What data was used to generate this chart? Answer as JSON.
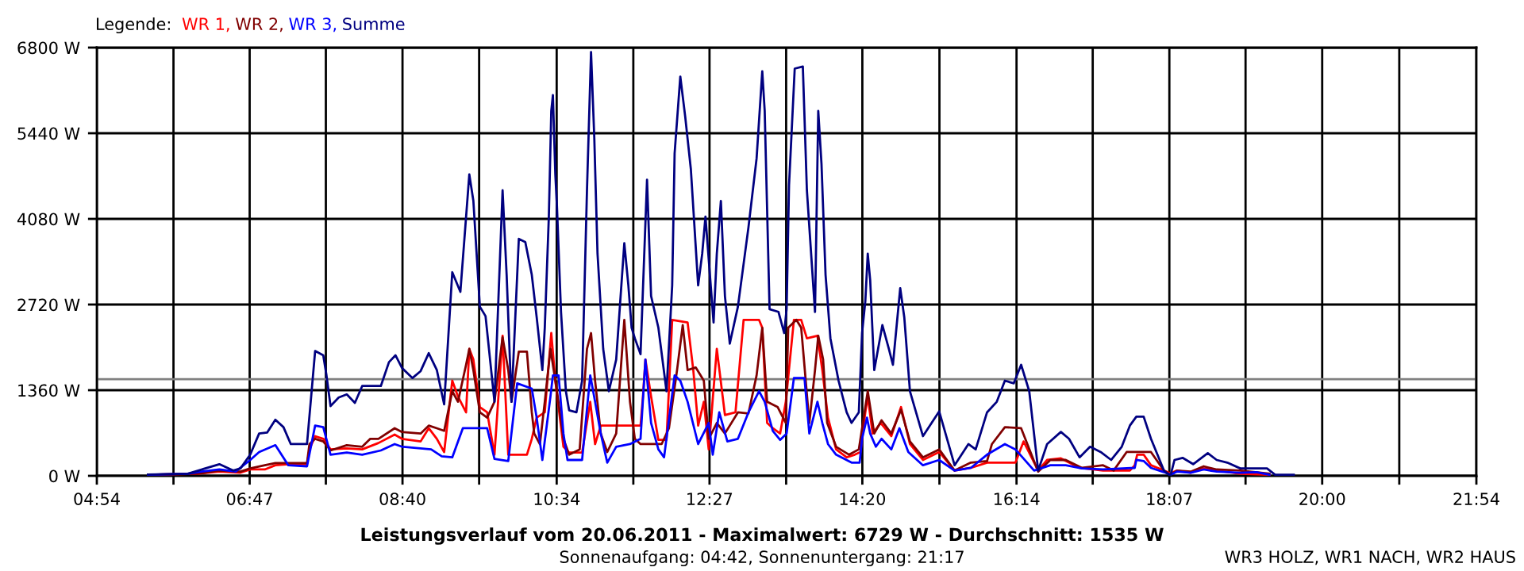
{
  "chart_data": {
    "type": "line",
    "title": "Leistungsverlauf vom 20.06.2011 - Maximalwert: 6729 W - Durchschnitt: 1535 W",
    "subtitle": "Sonnenaufgang: 04:42, Sonnenuntergang: 21:17",
    "legend_title": "Legende:",
    "legend": "top left",
    "grid": true,
    "line_style": "solid",
    "marker": "none",
    "annotations": [
      "WR3 HOLZ, WR1 NACH, WR2 HAUS"
    ],
    "xlim": [
      4.9,
      21.9
    ],
    "xticks": [
      {
        "value": 4.9,
        "label": "04:54"
      },
      {
        "value": 5.8444,
        "label": null
      },
      {
        "value": 6.7833,
        "label": "06:47"
      },
      {
        "value": 7.7222,
        "label": null
      },
      {
        "value": 8.6667,
        "label": "08:40"
      },
      {
        "value": 9.6111,
        "label": null
      },
      {
        "value": 10.5667,
        "label": "10:34"
      },
      {
        "value": 11.5111,
        "label": null
      },
      {
        "value": 12.45,
        "label": "12:27"
      },
      {
        "value": 13.3944,
        "label": null
      },
      {
        "value": 14.3333,
        "label": "14:20"
      },
      {
        "value": 15.2833,
        "label": null
      },
      {
        "value": 16.2333,
        "label": "16:14"
      },
      {
        "value": 17.1722,
        "label": null
      },
      {
        "value": 18.1167,
        "label": "18:07"
      },
      {
        "value": 19.0556,
        "label": null
      },
      {
        "value": 20.0,
        "label": "20:00"
      },
      {
        "value": 20.95,
        "label": null
      },
      {
        "value": 21.9,
        "label": "21:54"
      }
    ],
    "ylim": [
      0,
      6800
    ],
    "yticks": [
      {
        "value": 0,
        "label": "0 W"
      },
      {
        "value": 1360,
        "label": "1360 W"
      },
      {
        "value": 2720,
        "label": "2720 W"
      },
      {
        "value": 4080,
        "label": "4080 W"
      },
      {
        "value": 5440,
        "label": "5440 W"
      },
      {
        "value": 6800,
        "label": "6800 W"
      }
    ],
    "ref_lines": [
      {
        "axis": "y",
        "value": 1535,
        "label": null,
        "color": "#808080"
      }
    ],
    "series": [
      {
        "name": "WR 1,",
        "color": "#ff0000",
        "x": [
          5.53,
          6.14,
          6.41,
          6.67,
          6.79,
          6.97,
          7.1,
          7.26,
          7.49,
          7.52,
          7.59,
          7.69,
          7.78,
          7.98,
          8.17,
          8.37,
          8.57,
          8.66,
          8.89,
          8.99,
          9.09,
          9.18,
          9.28,
          9.35,
          9.45,
          9.49,
          9.54,
          9.62,
          9.71,
          9.8,
          9.9,
          9.97,
          10.2,
          10.26,
          10.32,
          10.42,
          10.5,
          10.55,
          10.65,
          10.72,
          10.88,
          10.98,
          11.04,
          11.11,
          11.6,
          11.63,
          11.66,
          11.73,
          11.82,
          11.92,
          11.99,
          12.18,
          12.25,
          12.31,
          12.38,
          12.44,
          12.54,
          12.64,
          12.77,
          12.87,
          13.06,
          13.1,
          13.16,
          13.23,
          13.32,
          13.39,
          13.49,
          13.58,
          13.65,
          13.78,
          13.84,
          13.91,
          14.01,
          14.14,
          14.24,
          14.31,
          14.37,
          14.4,
          14.46,
          14.56,
          14.69,
          14.81,
          14.92,
          15.08,
          15.28,
          15.47,
          15.67,
          15.87,
          16.22,
          16.32,
          16.5,
          16.61,
          16.78,
          17.01,
          17.3,
          17.56,
          17.63,
          17.69,
          17.72,
          17.8,
          17.89,
          18.05,
          18.13,
          18.21,
          18.38,
          18.54,
          18.7,
          18.99,
          19.35
        ],
        "values": [
          17,
          34,
          67,
          50,
          101,
          101,
          168,
          185,
          185,
          420,
          630,
          588,
          420,
          437,
          420,
          521,
          655,
          588,
          546,
          756,
          588,
          378,
          1511,
          1260,
          1008,
          2015,
          1847,
          1092,
          1008,
          336,
          2225,
          336,
          336,
          588,
          924,
          1008,
          2267,
          1511,
          462,
          369,
          369,
          1176,
          504,
          798,
          798,
          1260,
          1847,
          1260,
          571,
          571,
          2477,
          2435,
          1679,
          798,
          1176,
          420,
          2015,
          966,
          1008,
          2477,
          2477,
          2351,
          840,
          756,
          672,
          1176,
          2477,
          2477,
          2183,
          2225,
          1679,
          924,
          420,
          294,
          336,
          378,
          1008,
          1260,
          672,
          840,
          630,
          1092,
          504,
          252,
          378,
          84,
          126,
          210,
          210,
          546,
          84,
          252,
          277,
          126,
          84,
          84,
          84,
          168,
          336,
          336,
          168,
          84,
          42,
          84,
          50,
          118,
          84,
          34,
          17
        ]
      },
      {
        "name": "WR 2,",
        "color": "#800000",
        "x": [
          5.53,
          6.14,
          6.41,
          6.67,
          6.79,
          6.97,
          7.1,
          7.26,
          7.49,
          7.52,
          7.59,
          7.69,
          7.78,
          7.98,
          8.17,
          8.27,
          8.37,
          8.57,
          8.66,
          8.89,
          8.99,
          9.09,
          9.18,
          9.28,
          9.35,
          9.45,
          9.49,
          9.54,
          9.62,
          9.71,
          9.8,
          9.9,
          9.97,
          10.01,
          10.1,
          10.2,
          10.26,
          10.29,
          10.36,
          10.42,
          10.49,
          10.57,
          10.65,
          10.72,
          10.85,
          10.94,
          10.99,
          11.04,
          11.11,
          11.19,
          11.3,
          11.4,
          11.47,
          11.53,
          11.6,
          11.86,
          11.95,
          12.05,
          12.12,
          12.18,
          12.28,
          12.38,
          12.44,
          12.54,
          12.64,
          12.8,
          12.93,
          13.03,
          13.1,
          13.16,
          13.29,
          13.39,
          13.42,
          13.52,
          13.58,
          13.68,
          13.75,
          13.79,
          13.85,
          13.9,
          14.01,
          14.17,
          14.29,
          14.35,
          14.4,
          14.48,
          14.57,
          14.69,
          14.81,
          14.92,
          15.08,
          15.28,
          15.47,
          15.67,
          15.87,
          15.93,
          16.09,
          16.29,
          16.5,
          16.65,
          16.84,
          17.04,
          17.3,
          17.43,
          17.59,
          17.71,
          17.89,
          18.05,
          18.13,
          18.21,
          18.38,
          18.54,
          18.7,
          18.99,
          19.35
        ],
        "values": [
          17,
          34,
          84,
          67,
          118,
          168,
          202,
          202,
          202,
          504,
          588,
          546,
          403,
          487,
          462,
          588,
          588,
          756,
          697,
          672,
          798,
          756,
          714,
          1344,
          1176,
          1763,
          2015,
          1679,
          1008,
          924,
          1176,
          2200,
          1679,
          1176,
          1973,
          1973,
          1008,
          672,
          504,
          1176,
          2015,
          1344,
          588,
          336,
          420,
          2015,
          2267,
          1511,
          672,
          378,
          672,
          2477,
          1176,
          588,
          504,
          504,
          756,
          1679,
          2393,
          1679,
          1721,
          1511,
          588,
          840,
          672,
          1008,
          991,
          1595,
          2351,
          1176,
          1092,
          840,
          2351,
          2477,
          2351,
          840,
          1679,
          2225,
          1847,
          840,
          462,
          336,
          420,
          924,
          1344,
          672,
          882,
          672,
          1050,
          546,
          294,
          420,
          84,
          210,
          235,
          504,
          773,
          756,
          67,
          252,
          252,
          126,
          168,
          84,
          378,
          378,
          378,
          84,
          17,
          84,
          67,
          151,
          101,
          84,
          34
        ]
      },
      {
        "name": "WR 3,",
        "color": "#0000ff",
        "x": [
          5.53,
          6.02,
          6.14,
          6.41,
          6.61,
          6.79,
          6.9,
          7.1,
          7.26,
          7.49,
          7.59,
          7.69,
          7.78,
          7.98,
          8.17,
          8.4,
          8.57,
          8.66,
          9.02,
          9.15,
          9.28,
          9.41,
          9.71,
          9.8,
          9.97,
          10.08,
          10.26,
          10.32,
          10.39,
          10.49,
          10.52,
          10.59,
          10.65,
          10.7,
          10.88,
          10.98,
          11.04,
          11.11,
          11.19,
          11.3,
          11.47,
          11.6,
          11.66,
          11.73,
          11.82,
          11.89,
          12.02,
          12.09,
          12.18,
          12.31,
          12.44,
          12.49,
          12.57,
          12.67,
          12.8,
          12.93,
          13.06,
          13.13,
          13.23,
          13.32,
          13.4,
          13.49,
          13.62,
          13.68,
          13.78,
          13.84,
          13.91,
          14.01,
          14.2,
          14.3,
          14.33,
          14.39,
          14.43,
          14.5,
          14.57,
          14.69,
          14.79,
          14.9,
          15.08,
          15.28,
          15.47,
          15.67,
          15.87,
          16.09,
          16.22,
          16.45,
          16.65,
          16.84,
          17.04,
          17.3,
          17.69,
          17.71,
          17.8,
          17.89,
          18.05,
          18.13,
          18.21,
          18.38,
          18.54,
          18.7,
          18.99,
          19.19,
          19.35
        ],
        "values": [
          17,
          34,
          59,
          101,
          67,
          252,
          378,
          487,
          168,
          151,
          798,
          773,
          336,
          369,
          336,
          403,
          504,
          462,
          420,
          311,
          294,
          756,
          756,
          269,
          235,
          1469,
          1385,
          924,
          252,
          1260,
          1595,
          1595,
          672,
          252,
          252,
          1595,
          1176,
          672,
          210,
          462,
          504,
          588,
          1847,
          840,
          420,
          294,
          1595,
          1511,
          1176,
          504,
          840,
          336,
          1008,
          546,
          588,
          1008,
          1344,
          1176,
          714,
          571,
          672,
          1553,
          1553,
          672,
          1176,
          840,
          504,
          336,
          210,
          210,
          588,
          924,
          672,
          462,
          588,
          420,
          756,
          378,
          168,
          252,
          84,
          126,
          336,
          504,
          420,
          84,
          168,
          168,
          118,
          101,
          126,
          252,
          235,
          126,
          59,
          17,
          67,
          50,
          101,
          67,
          50,
          59,
          17
        ]
      },
      {
        "name": "Summe",
        "color": "#000080",
        "x": [
          5.53,
          6.02,
          6.15,
          6.41,
          6.58,
          6.67,
          6.79,
          6.9,
          7.0,
          7.1,
          7.2,
          7.29,
          7.49,
          7.59,
          7.69,
          7.73,
          7.78,
          7.88,
          7.98,
          8.08,
          8.17,
          8.4,
          8.5,
          8.58,
          8.66,
          8.79,
          8.89,
          8.99,
          9.09,
          9.18,
          9.28,
          9.38,
          9.49,
          9.54,
          9.62,
          9.69,
          9.8,
          9.9,
          9.95,
          10.01,
          10.1,
          10.18,
          10.26,
          10.32,
          10.39,
          10.42,
          10.47,
          10.5,
          10.52,
          10.55,
          10.57,
          10.62,
          10.68,
          10.72,
          10.81,
          10.88,
          10.94,
          10.99,
          11.03,
          11.07,
          11.14,
          11.21,
          11.3,
          11.4,
          11.45,
          11.49,
          11.53,
          11.6,
          11.68,
          11.73,
          11.82,
          11.92,
          11.99,
          12.02,
          12.09,
          12.15,
          12.22,
          12.31,
          12.36,
          12.4,
          12.44,
          12.5,
          12.54,
          12.59,
          12.64,
          12.7,
          12.8,
          12.93,
          13.03,
          13.1,
          13.13,
          13.19,
          13.3,
          13.37,
          13.4,
          13.43,
          13.5,
          13.6,
          13.65,
          13.75,
          13.79,
          13.83,
          13.88,
          13.94,
          14.04,
          14.14,
          14.2,
          14.29,
          14.33,
          14.37,
          14.4,
          14.43,
          14.48,
          14.58,
          14.66,
          14.71,
          14.8,
          14.85,
          14.92,
          15.08,
          15.28,
          15.47,
          15.64,
          15.73,
          15.87,
          15.99,
          16.09,
          16.2,
          16.29,
          16.39,
          16.5,
          16.61,
          16.78,
          16.88,
          17.01,
          17.14,
          17.27,
          17.4,
          17.53,
          17.63,
          17.71,
          17.8,
          17.89,
          18.05,
          18.13,
          18.18,
          18.28,
          18.41,
          18.59,
          18.7,
          18.83,
          18.99,
          19.19,
          19.32,
          19.42,
          19.65
        ],
        "values": [
          20,
          34,
          84,
          185,
          84,
          118,
          336,
          672,
          689,
          890,
          773,
          504,
          504,
          1982,
          1915,
          1595,
          1108,
          1243,
          1293,
          1159,
          1427,
          1427,
          1805,
          1915,
          1713,
          1553,
          1663,
          1948,
          1679,
          1134,
          3233,
          2922,
          4786,
          4366,
          2687,
          2536,
          1176,
          4534,
          3191,
          1176,
          3762,
          3712,
          3191,
          2519,
          1679,
          2351,
          4115,
          5794,
          6046,
          4786,
          4282,
          2603,
          1344,
          1041,
          1008,
          1511,
          4534,
          6729,
          5374,
          3527,
          2015,
          1344,
          1847,
          3695,
          3023,
          2351,
          2183,
          1931,
          4702,
          2855,
          2351,
          1344,
          3023,
          5122,
          6340,
          5710,
          4870,
          3023,
          3527,
          4115,
          3443,
          2435,
          3527,
          4366,
          2855,
          2099,
          2687,
          3947,
          5038,
          6424,
          5794,
          2645,
          2603,
          2267,
          2645,
          4618,
          6466,
          6499,
          4534,
          2603,
          5794,
          4954,
          3191,
          2183,
          1511,
          1008,
          840,
          1008,
          2267,
          2771,
          3527,
          3107,
          1679,
          2393,
          2015,
          1763,
          2981,
          2519,
          1344,
          630,
          1024,
          168,
          504,
          420,
          1008,
          1176,
          1511,
          1469,
          1763,
          1344,
          84,
          504,
          697,
          588,
          294,
          462,
          378,
          252,
          462,
          798,
          940,
          940,
          588,
          84,
          0,
          252,
          286,
          185,
          361,
          252,
          210,
          118,
          118,
          118,
          17,
          17
        ]
      }
    ]
  }
}
